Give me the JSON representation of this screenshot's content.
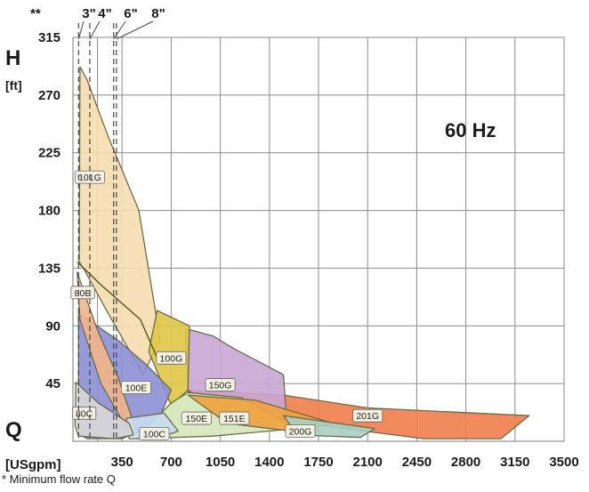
{
  "chart_data": {
    "type": "area",
    "frequency_label": "60 Hz",
    "ylabel": "H",
    "yunit": "[ft]",
    "xlabel": "Q",
    "xunit": "[USgpm]",
    "xlim": [
      0,
      3500
    ],
    "ylim": [
      0,
      315
    ],
    "xticks": [
      350,
      700,
      1050,
      1400,
      1750,
      2100,
      2450,
      2800,
      3150,
      3500
    ],
    "yticks": [
      45,
      90,
      135,
      180,
      225,
      270,
      315
    ],
    "well_marker_prefix": "**",
    "well_sizes": [
      {
        "label": "3\"",
        "x": 40
      },
      {
        "label": "4\"",
        "x": 120
      },
      {
        "label": "6\"",
        "x": 290
      }
    ],
    "well_size_extra": {
      "label": "8\"",
      "x": 310
    },
    "series": [
      {
        "name": "201G",
        "color": "#ef7d4a",
        "points": [
          [
            800,
            40
          ],
          [
            1500,
            36
          ],
          [
            2100,
            26
          ],
          [
            3250,
            20
          ],
          [
            3050,
            2
          ],
          [
            2500,
            2
          ],
          [
            1650,
            14
          ],
          [
            1000,
            28
          ]
        ]
      },
      {
        "name": "150G",
        "color": "#c9a6d4",
        "points": [
          [
            800,
            88
          ],
          [
            1000,
            82
          ],
          [
            1150,
            72
          ],
          [
            1500,
            52
          ],
          [
            1520,
            20
          ],
          [
            1450,
            10
          ],
          [
            1100,
            16
          ],
          [
            820,
            40
          ]
        ]
      },
      {
        "name": "101G",
        "color": "#f6ddb0",
        "points": [
          [
            50,
            292
          ],
          [
            100,
            282
          ],
          [
            250,
            238
          ],
          [
            470,
            180
          ],
          [
            560,
            120
          ],
          [
            620,
            80
          ],
          [
            500,
            52
          ],
          [
            250,
            100
          ],
          [
            90,
            132
          ],
          [
            45,
            140
          ]
        ]
      },
      {
        "name": "100G",
        "color": "#e0c646",
        "points": [
          [
            600,
            102
          ],
          [
            830,
            90
          ],
          [
            820,
            40
          ],
          [
            700,
            28
          ],
          [
            540,
            70
          ]
        ]
      },
      {
        "name": "100E",
        "color": "#8b8fd4",
        "points": [
          [
            40,
            100
          ],
          [
            330,
            78
          ],
          [
            520,
            60
          ],
          [
            700,
            40
          ],
          [
            600,
            14
          ],
          [
            350,
            2
          ],
          [
            100,
            2
          ],
          [
            40,
            6
          ]
        ]
      },
      {
        "name": "80E",
        "color": "#f2b58a",
        "points": [
          [
            30,
            132
          ],
          [
            170,
            88
          ],
          [
            320,
            50
          ],
          [
            440,
            12
          ],
          [
            470,
            7
          ],
          [
            400,
            7
          ],
          [
            200,
            45
          ],
          [
            50,
            95
          ]
        ]
      },
      {
        "name": "150E",
        "color": "#d4e6b8",
        "points": [
          [
            700,
            30
          ],
          [
            820,
            38
          ],
          [
            1200,
            34
          ],
          [
            1600,
            10
          ],
          [
            1000,
            4
          ],
          [
            450,
            2
          ]
        ]
      },
      {
        "name": "151E",
        "color": "#f2a23c",
        "points": [
          [
            820,
            36
          ],
          [
            1300,
            32
          ],
          [
            1850,
            14
          ],
          [
            1550,
            8
          ],
          [
            1100,
            14
          ]
        ]
      },
      {
        "name": "200G",
        "color": "#a8cfc4",
        "points": [
          [
            1500,
            20
          ],
          [
            1750,
            16
          ],
          [
            2150,
            10
          ],
          [
            2050,
            3
          ],
          [
            1600,
            5
          ]
        ]
      },
      {
        "name": "100C",
        "color": "#c8ddf2",
        "points": [
          [
            380,
            18
          ],
          [
            650,
            22
          ],
          [
            750,
            8
          ],
          [
            600,
            2
          ],
          [
            400,
            2
          ]
        ]
      },
      {
        "name": "80C",
        "color": "#d8d8d8",
        "points": [
          [
            20,
            46
          ],
          [
            180,
            30
          ],
          [
            400,
            14
          ],
          [
            430,
            5
          ],
          [
            300,
            2
          ],
          [
            40,
            4
          ],
          [
            15,
            12
          ]
        ]
      }
    ],
    "upper_envelope": [
      [
        30,
        140
      ],
      [
        200,
        122
      ],
      [
        480,
        95
      ],
      [
        620,
        60
      ]
    ],
    "region_labels": [
      {
        "text": "101G",
        "x": 120,
        "y": 206
      },
      {
        "text": "80E",
        "x": 70,
        "y": 116
      },
      {
        "text": "100G",
        "x": 700,
        "y": 65
      },
      {
        "text": "100E",
        "x": 450,
        "y": 42
      },
      {
        "text": "150G",
        "x": 1050,
        "y": 44
      },
      {
        "text": "80C",
        "x": 80,
        "y": 22
      },
      {
        "text": "150E",
        "x": 880,
        "y": 18
      },
      {
        "text": "151E",
        "x": 1150,
        "y": 18
      },
      {
        "text": "201G",
        "x": 2100,
        "y": 20
      },
      {
        "text": "200G",
        "x": 1620,
        "y": 8
      },
      {
        "text": "100C",
        "x": 580,
        "y": 6
      }
    ]
  },
  "footnote": "* Minimum flow rate Q"
}
